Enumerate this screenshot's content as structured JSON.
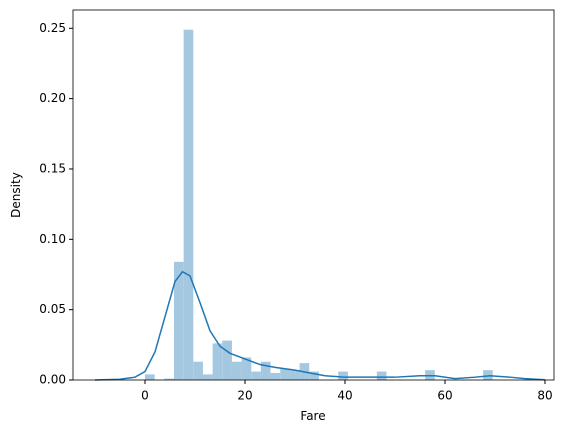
{
  "chart_data": {
    "type": "histogram",
    "xlabel": "Fare",
    "ylabel": "Density",
    "bins": [
      0,
      1.932,
      3.864,
      5.796,
      7.728,
      9.66,
      11.592,
      13.524,
      15.456,
      17.388,
      19.32,
      21.252,
      23.184,
      25.116,
      27.048,
      28.98,
      30.912,
      32.844,
      34.776,
      36.708,
      38.64,
      40.572,
      42.504,
      44.436,
      46.368,
      48.3,
      50.232,
      52.164,
      54.096,
      56.028,
      57.96,
      59.892,
      61.824,
      63.756,
      65.688,
      67.62,
      69.552
    ],
    "values": [
      0.004,
      0,
      0.001,
      0.084,
      0.249,
      0.013,
      0.004,
      0.026,
      0.028,
      0.013,
      0.016,
      0.006,
      0.013,
      0.005,
      0.008,
      0.007,
      0.012,
      0.006,
      0,
      0,
      0.006,
      0,
      0,
      0,
      0.006,
      0,
      0,
      0,
      0,
      0.007,
      0,
      0,
      0,
      0,
      0,
      0.007
    ],
    "color": "#a5c8e1",
    "kde": {
      "color": "#1f77b4",
      "x": [
        -10,
        -5,
        -2,
        0,
        2,
        4,
        6,
        7.5,
        9,
        11,
        13,
        15,
        17,
        20,
        23,
        26,
        30,
        33,
        36,
        40,
        45,
        50,
        55,
        58,
        62,
        66,
        69,
        73,
        76,
        80
      ],
      "y": [
        0,
        0.0005,
        0.002,
        0.006,
        0.02,
        0.045,
        0.07,
        0.077,
        0.074,
        0.055,
        0.035,
        0.024,
        0.019,
        0.015,
        0.011,
        0.009,
        0.007,
        0.005,
        0.003,
        0.002,
        0.002,
        0.002,
        0.003,
        0.003,
        0.001,
        0.002,
        0.003,
        0.002,
        0.001,
        0.0002
      ]
    },
    "xlim": [
      -14.4,
      81.8
    ],
    "ylim": [
      0,
      0.263
    ],
    "xticks": [
      0,
      20,
      40,
      60,
      80
    ],
    "yticks": [
      {
        "value": 0,
        "label": "0.00"
      },
      {
        "value": 0.05,
        "label": "0.05"
      },
      {
        "value": 0.1,
        "label": "0.10"
      },
      {
        "value": 0.15,
        "label": "0.15"
      },
      {
        "value": 0.2,
        "label": "0.20"
      },
      {
        "value": 0.25,
        "label": "0.25"
      }
    ]
  }
}
